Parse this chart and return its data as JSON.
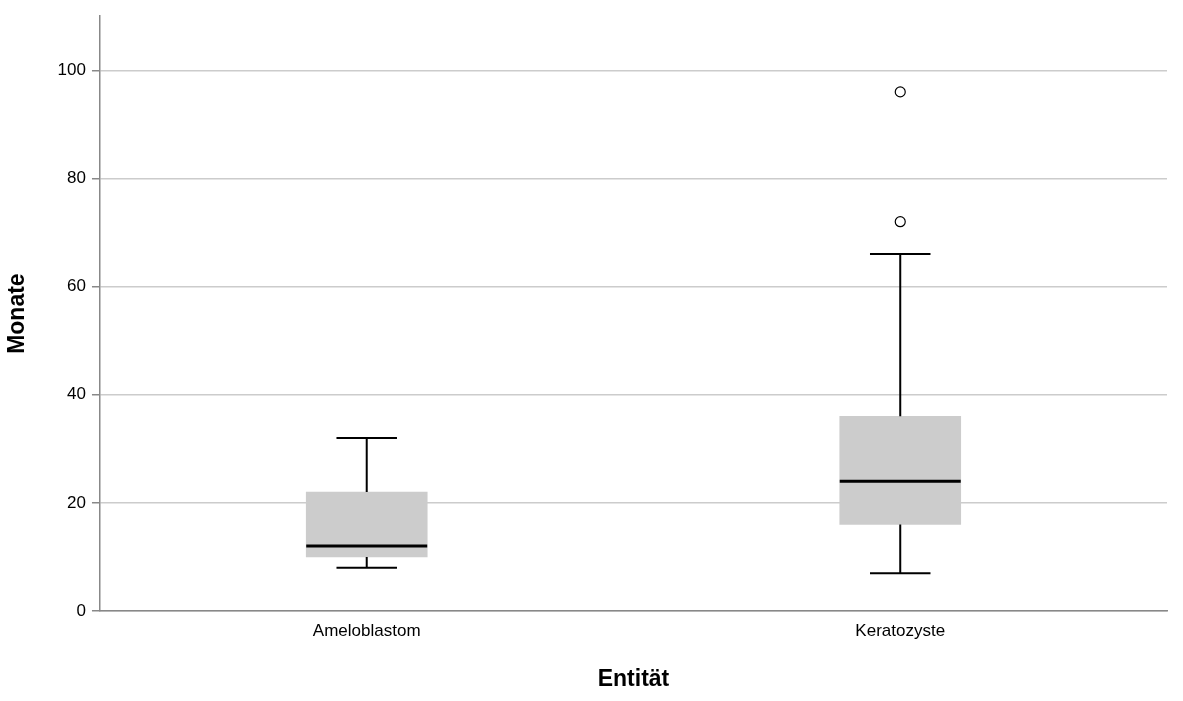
{
  "chart_data": {
    "type": "box",
    "xlabel": "Entität",
    "ylabel": "Monate",
    "categories": [
      "Ameloblastom",
      "Keratozyste"
    ],
    "series": [
      {
        "color": "#cccccc",
        "boxes": [
          {
            "low": 8,
            "q1": 10,
            "median": 12,
            "q3": 22,
            "high": 32
          },
          {
            "low": 7,
            "q1": 16,
            "median": 24,
            "q3": 36,
            "high": 66,
            "outliers": [
              72,
              96
            ]
          }
        ]
      }
    ],
    "ylim": [
      0,
      110
    ],
    "yticks": [
      0,
      20,
      40,
      60,
      80,
      100
    ],
    "grid": "y"
  }
}
